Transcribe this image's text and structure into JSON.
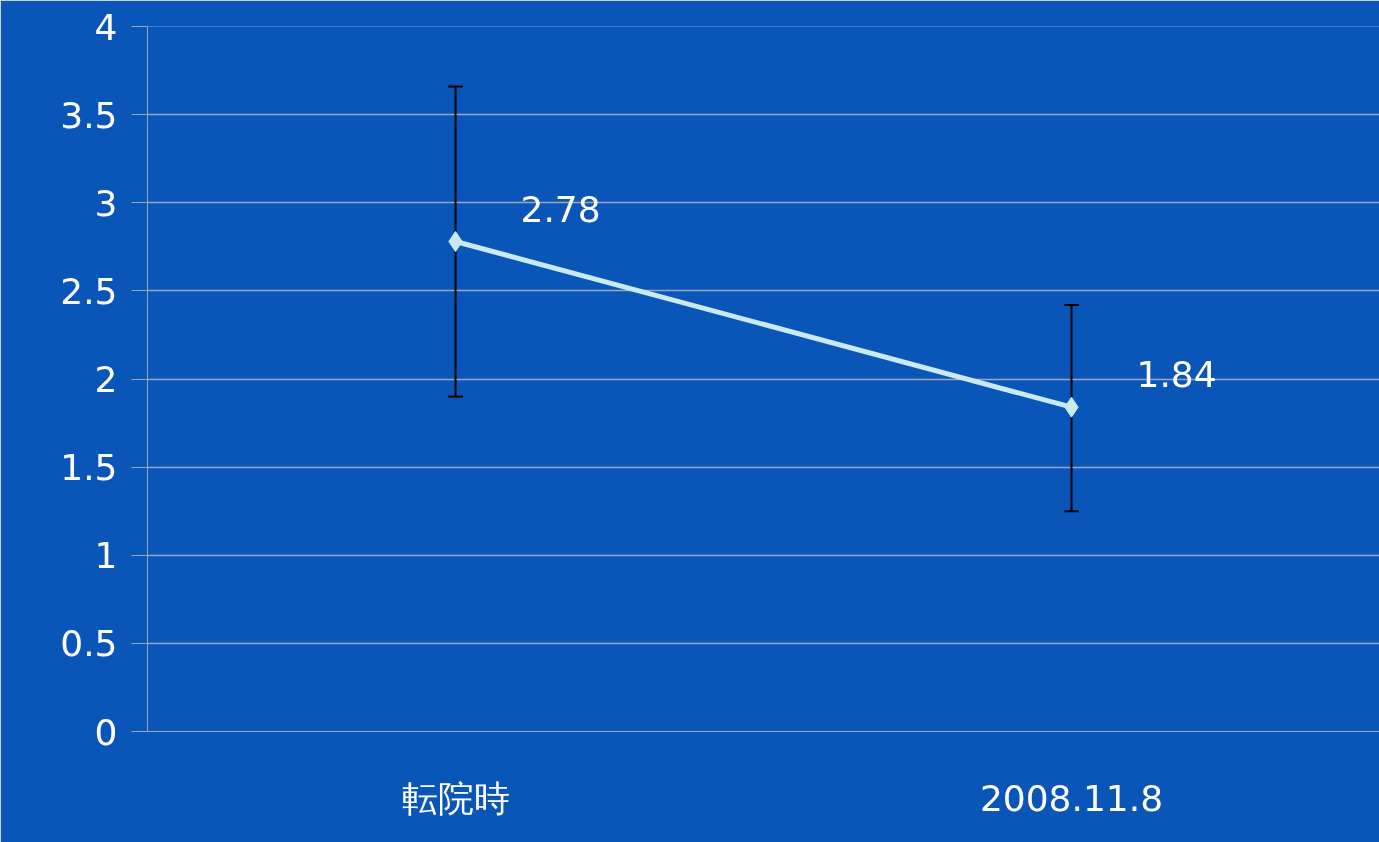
{
  "chart_data": {
    "type": "line",
    "categories": [
      "転院時",
      "2008.11.8"
    ],
    "series": [
      {
        "color": "#c8eaf0",
        "values": [
          2.78,
          1.84
        ],
        "errors": [
          [
            1.9,
            3.66
          ],
          [
            1.25,
            2.42
          ]
        ]
      }
    ],
    "ylim": [
      0,
      4
    ],
    "yticks": [
      0,
      {
        "value": 0.5,
        "label": "0.5"
      },
      1,
      {
        "value": 1.5,
        "label": "1.5"
      },
      2,
      {
        "value": 2.5,
        "label": "2.5"
      },
      3,
      {
        "value": 3.5,
        "label": "3.5"
      },
      4
    ],
    "grid": "y",
    "marker": "diamond",
    "line_style": "solid",
    "data_labels": true
  }
}
